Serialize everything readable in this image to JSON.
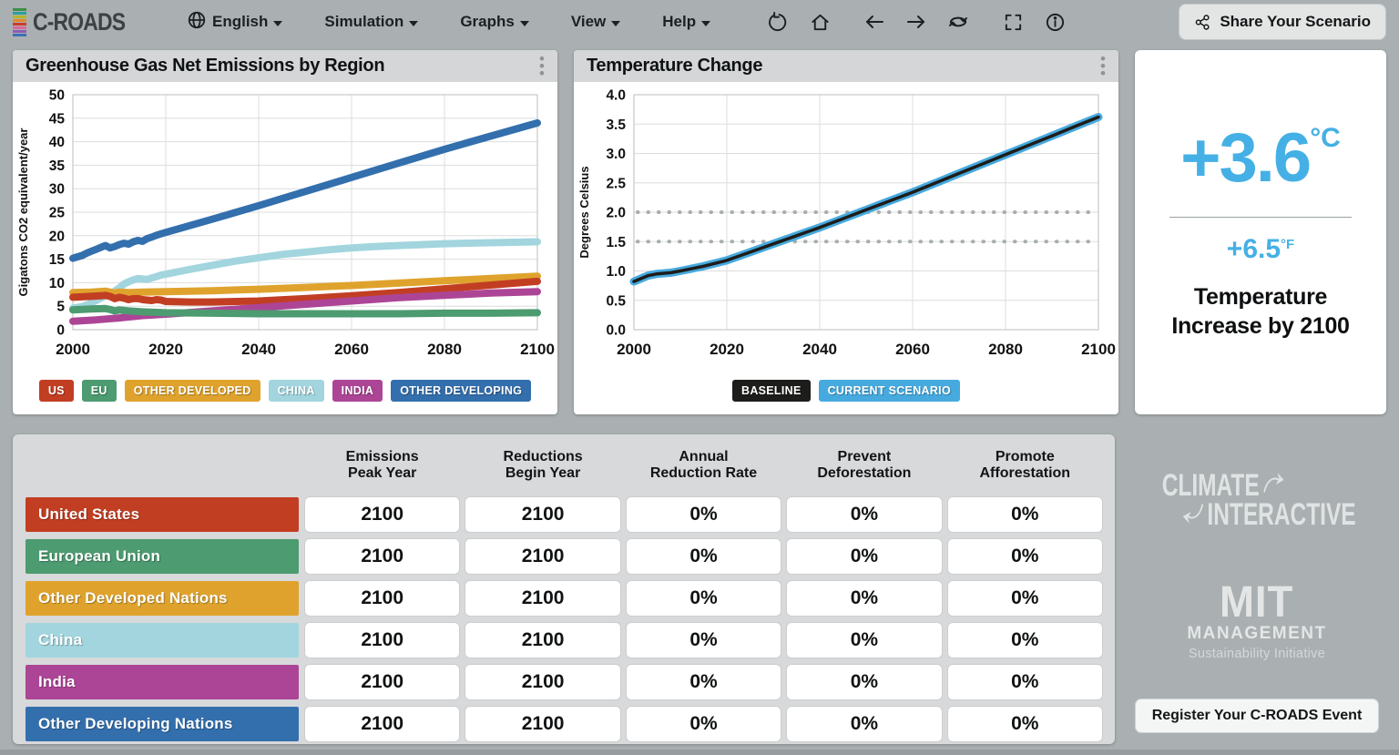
{
  "app": {
    "title": "C-ROADS"
  },
  "navbar": {
    "menus": [
      {
        "label": "English"
      },
      {
        "label": "Simulation"
      },
      {
        "label": "Graphs"
      },
      {
        "label": "View"
      },
      {
        "label": "Help"
      }
    ],
    "tool_icons": [
      "undo-icon",
      "home-icon",
      "back-icon",
      "forward-icon",
      "replay-icon",
      "fullscreen-icon",
      "info-icon"
    ],
    "share_button": "Share Your Scenario"
  },
  "emissions_panel": {
    "title": "Greenhouse Gas Net Emissions by Region",
    "legend": [
      {
        "label": "US",
        "color": "#c23e23"
      },
      {
        "label": "EU",
        "color": "#4d9b70"
      },
      {
        "label": "OTHER DEVELOPED",
        "color": "#dfa32d"
      },
      {
        "label": "CHINA",
        "color": "#a2d5de"
      },
      {
        "label": "INDIA",
        "color": "#ad4596"
      },
      {
        "label": "OTHER DEVELOPING",
        "color": "#336fad"
      }
    ],
    "chart_data": {
      "type": "line",
      "title": "Greenhouse Gas Net Emissions by Region",
      "xlabel": "",
      "ylabel": "Gigatons CO2 equivalent/year",
      "xlim": [
        2000,
        2100
      ],
      "ylim": [
        0,
        50
      ],
      "xticks": [
        2000,
        2020,
        2040,
        2060,
        2080,
        2100
      ],
      "ytick_values": [
        0,
        5,
        10,
        15,
        20,
        25,
        30,
        35,
        40,
        45,
        50
      ],
      "ytick_labels": [
        "0",
        "5",
        "10",
        "15",
        "20",
        "25",
        "30",
        "35",
        "40",
        "45",
        "50"
      ],
      "grid": true,
      "legend_position": "bottom",
      "series": [
        {
          "name": "Other Developing",
          "color": "#336fad",
          "width": 8,
          "x": [
            2000,
            2001,
            2002,
            2003,
            2004,
            2005,
            2006,
            2007,
            2008,
            2009,
            2010,
            2011,
            2012,
            2013,
            2014,
            2015,
            2016,
            2017,
            2018,
            2019,
            2020,
            2030,
            2040,
            2050,
            2060,
            2070,
            2080,
            2090,
            2100
          ],
          "values": [
            15.2,
            15.5,
            15.8,
            16.3,
            16.7,
            17.1,
            17.5,
            17.9,
            17.4,
            17.7,
            18.1,
            18.4,
            18.2,
            18.7,
            19.0,
            18.8,
            19.4,
            19.7,
            20.1,
            20.4,
            20.7,
            23.5,
            26.4,
            29.4,
            32.4,
            35.4,
            38.4,
            41.2,
            44.0
          ]
        },
        {
          "name": "China",
          "color": "#a2d5de",
          "width": 8,
          "x": [
            2000,
            2002,
            2004,
            2006,
            2008,
            2009,
            2010,
            2011,
            2012,
            2013,
            2014,
            2015,
            2016,
            2017,
            2018,
            2019,
            2020,
            2025,
            2030,
            2035,
            2040,
            2045,
            2050,
            2055,
            2060,
            2065,
            2070,
            2075,
            2080,
            2090,
            2100
          ],
          "values": [
            4.6,
            4.9,
            5.7,
            6.7,
            7.7,
            8.2,
            8.9,
            9.7,
            10.2,
            10.6,
            10.9,
            10.8,
            10.7,
            11.0,
            11.3,
            11.6,
            11.8,
            12.8,
            13.7,
            14.6,
            15.3,
            16.0,
            16.5,
            17.0,
            17.4,
            17.7,
            17.9,
            18.1,
            18.3,
            18.5,
            18.7
          ]
        },
        {
          "name": "Other Developed",
          "color": "#dfa32d",
          "width": 8,
          "x": [
            2000,
            2004,
            2007,
            2009,
            2010,
            2012,
            2015,
            2020,
            2030,
            2040,
            2050,
            2060,
            2070,
            2080,
            2090,
            2100
          ],
          "values": [
            7.9,
            8.0,
            8.2,
            7.8,
            8.0,
            7.9,
            8.0,
            8.1,
            8.3,
            8.6,
            9.0,
            9.4,
            9.9,
            10.4,
            10.9,
            11.4
          ]
        },
        {
          "name": "US",
          "color": "#c23e23",
          "width": 8,
          "x": [
            2000,
            2002,
            2004,
            2006,
            2007,
            2008,
            2009,
            2010,
            2011,
            2012,
            2013,
            2014,
            2015,
            2016,
            2017,
            2018,
            2019,
            2020,
            2025,
            2030,
            2040,
            2050,
            2060,
            2070,
            2080,
            2090,
            2100
          ],
          "values": [
            6.9,
            7.0,
            7.1,
            7.2,
            7.3,
            7.1,
            6.6,
            6.9,
            6.7,
            6.4,
            6.6,
            6.6,
            6.4,
            6.3,
            6.2,
            6.4,
            6.3,
            6.0,
            5.9,
            5.9,
            6.1,
            6.6,
            7.2,
            7.9,
            8.7,
            9.5,
            10.3
          ]
        },
        {
          "name": "India",
          "color": "#ad4596",
          "width": 8,
          "x": [
            2000,
            2005,
            2010,
            2015,
            2020,
            2030,
            2040,
            2050,
            2060,
            2070,
            2080,
            2090,
            2100
          ],
          "values": [
            1.8,
            2.1,
            2.5,
            3.0,
            3.3,
            4.0,
            4.7,
            5.4,
            6.1,
            6.8,
            7.3,
            7.8,
            8.1
          ]
        },
        {
          "name": "EU",
          "color": "#4d9b70",
          "width": 8,
          "x": [
            2000,
            2004,
            2007,
            2008,
            2009,
            2010,
            2012,
            2015,
            2020,
            2030,
            2040,
            2050,
            2060,
            2070,
            2080,
            2090,
            2100
          ],
          "values": [
            4.2,
            4.4,
            4.5,
            4.3,
            4.0,
            4.2,
            4.0,
            3.8,
            3.6,
            3.5,
            3.4,
            3.4,
            3.4,
            3.4,
            3.5,
            3.5,
            3.6
          ]
        }
      ]
    }
  },
  "temperature_panel": {
    "title": "Temperature Change",
    "legend": [
      {
        "label": "BASELINE",
        "color": "#1d1d1b"
      },
      {
        "label": "CURRENT SCENARIO",
        "color": "#47aadf"
      }
    ],
    "chart_data": {
      "type": "line",
      "title": "Temperature Change",
      "xlabel": "",
      "ylabel": "Degrees Celsius",
      "xlim": [
        2000,
        2100
      ],
      "ylim": [
        0,
        4
      ],
      "xticks": [
        2000,
        2020,
        2040,
        2060,
        2080,
        2100
      ],
      "ytick_values": [
        0,
        0.5,
        1,
        1.5,
        2,
        2.5,
        3,
        3.5,
        4
      ],
      "ytick_labels": [
        "0.0",
        "0.5",
        "1.0",
        "1.5",
        "2.0",
        "2.5",
        "3.0",
        "3.5",
        "4.0"
      ],
      "ref_lines": [
        1.5,
        2.0
      ],
      "grid": true,
      "legend_position": "bottom",
      "series": [
        {
          "name": "Current Scenario",
          "color": "#47aadf",
          "width": 9,
          "x": [
            2000,
            2003,
            2005,
            2008,
            2010,
            2015,
            2020,
            2025,
            2030,
            2035,
            2040,
            2045,
            2050,
            2055,
            2060,
            2065,
            2070,
            2075,
            2080,
            2085,
            2090,
            2095,
            2100
          ],
          "values": [
            0.82,
            0.92,
            0.95,
            0.97,
            1.0,
            1.08,
            1.18,
            1.32,
            1.46,
            1.6,
            1.74,
            1.89,
            2.04,
            2.19,
            2.34,
            2.5,
            2.66,
            2.82,
            2.98,
            3.14,
            3.3,
            3.46,
            3.62
          ]
        },
        {
          "name": "Baseline",
          "color": "#1d1d1b",
          "width": 3.5,
          "x": [
            2000,
            2003,
            2005,
            2008,
            2010,
            2015,
            2020,
            2025,
            2030,
            2035,
            2040,
            2045,
            2050,
            2055,
            2060,
            2065,
            2070,
            2075,
            2080,
            2085,
            2090,
            2095,
            2100
          ],
          "values": [
            0.82,
            0.92,
            0.95,
            0.97,
            1.0,
            1.08,
            1.18,
            1.32,
            1.46,
            1.6,
            1.74,
            1.89,
            2.04,
            2.19,
            2.34,
            2.5,
            2.66,
            2.82,
            2.98,
            3.14,
            3.3,
            3.46,
            3.62
          ]
        }
      ]
    }
  },
  "temperature_summary": {
    "celsius": "+3.6",
    "celsius_unit": "°C",
    "fahrenheit": "+6.5",
    "fahrenheit_unit": "°F",
    "caption": "Temperature Increase by 2100"
  },
  "controls_table": {
    "columns": [
      "Emissions\nPeak Year",
      "Reductions\nBegin Year",
      "Annual\nReduction Rate",
      "Prevent\nDeforestation",
      "Promote\nAfforestation"
    ],
    "rows": [
      {
        "label": "United States",
        "color": "#c23e23",
        "values": [
          "2100",
          "2100",
          "0%",
          "0%",
          "0%"
        ]
      },
      {
        "label": "European Union",
        "color": "#4d9b70",
        "values": [
          "2100",
          "2100",
          "0%",
          "0%",
          "0%"
        ]
      },
      {
        "label": "Other Developed Nations",
        "color": "#dfa32d",
        "values": [
          "2100",
          "2100",
          "0%",
          "0%",
          "0%"
        ]
      },
      {
        "label": "China",
        "color": "#a2d5de",
        "values": [
          "2100",
          "2100",
          "0%",
          "0%",
          "0%"
        ]
      },
      {
        "label": "India",
        "color": "#ad4596",
        "values": [
          "2100",
          "2100",
          "0%",
          "0%",
          "0%"
        ]
      },
      {
        "label": "Other Developing Nations",
        "color": "#336fad",
        "values": [
          "2100",
          "2100",
          "0%",
          "0%",
          "0%"
        ]
      }
    ]
  },
  "footer": {
    "climate_interactive_line1": "CLIMATE",
    "climate_interactive_line2": "INTERACTIVE",
    "mit_line1": "MIT",
    "mit_line2": "MANAGEMENT",
    "mit_line3": "Sustainability Initiative",
    "register_button": "Register Your C-ROADS Event"
  },
  "colors": {
    "page_bg": "#aab0b2",
    "panel_header_bg": "#d4d6d7",
    "table_bg": "#d7d9da",
    "accent_blue": "#45b0e5"
  }
}
